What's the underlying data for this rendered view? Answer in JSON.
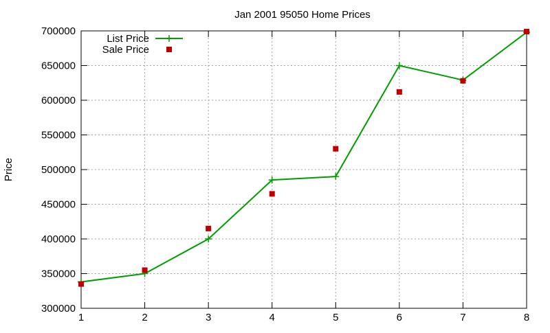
{
  "chart_data": {
    "type": "line",
    "title": "Jan 2001 95050 Home Prices",
    "xlabel": "",
    "ylabel": "Price",
    "xlim": [
      1,
      8
    ],
    "ylim": [
      300000,
      700000
    ],
    "x_ticks": [
      "1",
      "2",
      "3",
      "4",
      "5",
      "6",
      "7",
      "8"
    ],
    "y_ticks": [
      "300000",
      "350000",
      "400000",
      "450000",
      "500000",
      "550000",
      "600000",
      "650000",
      "700000"
    ],
    "grid": true,
    "legend_position": "top-left",
    "series": [
      {
        "name": "List Price",
        "style": "lines+points",
        "marker": "plus",
        "color": "#009e00",
        "x": [
          1,
          2,
          3,
          4,
          5,
          6,
          7,
          8
        ],
        "values": [
          338000,
          350000,
          400000,
          485000,
          490000,
          650000,
          629000,
          698000
        ]
      },
      {
        "name": "Sale Price",
        "style": "points",
        "marker": "square",
        "color": "#c00000",
        "x": [
          1,
          2,
          3,
          4,
          5,
          6,
          7,
          8
        ],
        "values": [
          335000,
          355000,
          415000,
          465000,
          530000,
          612000,
          628000,
          699000
        ]
      }
    ]
  }
}
